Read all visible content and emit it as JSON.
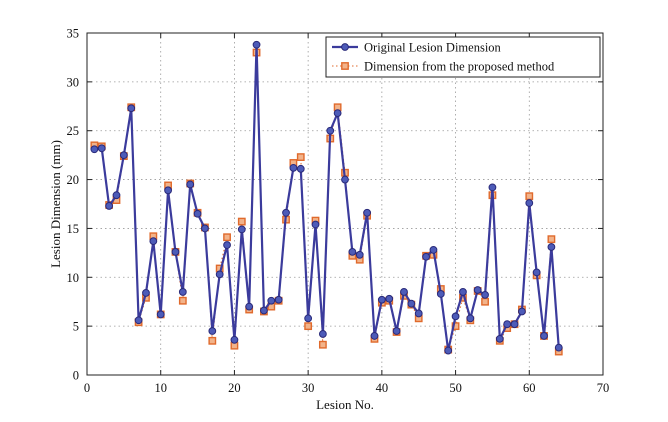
{
  "chart_data": {
    "type": "line",
    "xlabel": "Lesion No.",
    "ylabel": "Lesion Dimension (mm)",
    "xlim": [
      0,
      70
    ],
    "ylim": [
      0,
      35
    ],
    "xticks": [
      0,
      10,
      20,
      30,
      40,
      50,
      60,
      70
    ],
    "yticks": [
      0,
      5,
      10,
      15,
      20,
      25,
      30,
      35
    ],
    "grid": true,
    "legend_position": "top-right",
    "x": [
      1,
      2,
      3,
      4,
      5,
      6,
      7,
      8,
      9,
      10,
      11,
      12,
      13,
      14,
      15,
      16,
      17,
      18,
      19,
      20,
      21,
      22,
      23,
      24,
      25,
      26,
      27,
      28,
      29,
      30,
      31,
      32,
      33,
      34,
      35,
      36,
      37,
      38,
      39,
      40,
      41,
      42,
      43,
      44,
      45,
      46,
      47,
      48,
      49,
      50,
      51,
      52,
      53,
      54,
      55,
      56,
      57,
      58,
      59,
      60,
      61,
      62,
      63,
      64
    ],
    "series": [
      {
        "name": "Original Lesion Dimension",
        "color": "#3b3b9c",
        "marker_color": "#4d5bb8",
        "style": "solid-line-circle",
        "values": [
          23.1,
          23.2,
          17.3,
          18.4,
          22.5,
          27.3,
          5.6,
          8.4,
          13.7,
          6.2,
          18.9,
          12.6,
          8.5,
          19.5,
          16.5,
          15.0,
          4.5,
          10.3,
          13.3,
          3.6,
          14.9,
          7.0,
          33.8,
          6.6,
          7.6,
          7.7,
          16.6,
          21.2,
          21.1,
          5.8,
          15.4,
          4.2,
          25.0,
          26.8,
          20.0,
          12.6,
          12.3,
          16.6,
          4.0,
          7.7,
          7.8,
          4.5,
          8.5,
          7.3,
          6.3,
          12.1,
          12.8,
          8.3,
          2.5,
          6.0,
          8.5,
          5.8,
          8.7,
          8.2,
          19.2,
          3.7,
          5.2,
          5.2,
          6.5,
          17.6,
          10.5,
          4.0,
          13.1,
          2.8
        ]
      },
      {
        "name": "Dimension from the proposed method",
        "color": "#e06a2c",
        "marker_color": "#e06a2c",
        "style": "dotted-line-square",
        "values": [
          23.5,
          23.4,
          17.4,
          17.9,
          22.4,
          27.4,
          5.4,
          7.9,
          14.2,
          6.2,
          19.4,
          12.6,
          7.6,
          19.6,
          16.6,
          15.1,
          3.5,
          10.9,
          14.1,
          3.0,
          15.7,
          6.7,
          33.0,
          6.5,
          7.0,
          7.6,
          15.9,
          21.7,
          22.3,
          5.0,
          15.8,
          3.1,
          24.2,
          27.4,
          20.7,
          12.2,
          11.8,
          16.3,
          3.7,
          7.4,
          7.6,
          4.4,
          8.1,
          7.2,
          5.8,
          12.2,
          12.3,
          8.8,
          2.6,
          5.0,
          7.9,
          5.6,
          8.6,
          7.5,
          18.4,
          3.5,
          4.8,
          5.2,
          6.7,
          18.3,
          10.2,
          4.0,
          13.9,
          2.4
        ]
      }
    ]
  }
}
